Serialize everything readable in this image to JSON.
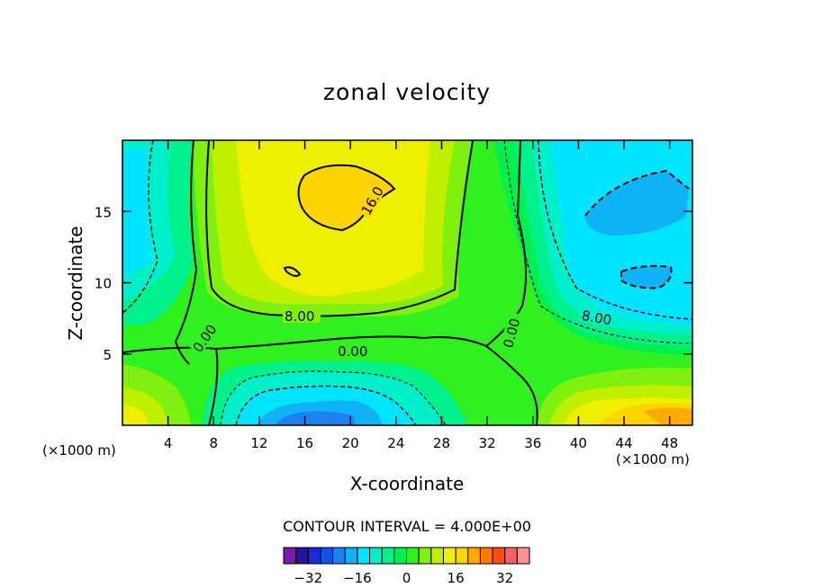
{
  "chart_data": {
    "type": "heatmap",
    "title": "zonal velocity",
    "xlabel": "X-coordinate",
    "ylabel": "Z-coordinate",
    "x_unit_left": "(×1000 m)",
    "x_unit_right": "(×1000 m)",
    "xlim": [
      0,
      50
    ],
    "ylim": [
      0,
      20
    ],
    "x_ticks": [
      4,
      8,
      12,
      16,
      20,
      24,
      28,
      32,
      36,
      40,
      44,
      48
    ],
    "y_ticks": [
      5,
      10,
      15
    ],
    "contour_interval_text": "CONTOUR INTERVAL = 4.000E+00",
    "contour_labels": [
      "16.0",
      "8.00",
      "8.00",
      "0.00",
      "0.00",
      "0.00"
    ],
    "colorbar": {
      "levels": [
        -40,
        -36,
        -32,
        -28,
        -24,
        -20,
        -16,
        -12,
        -8,
        -4,
        0,
        4,
        8,
        12,
        16,
        20,
        24,
        28,
        32,
        36,
        40
      ],
      "colors": [
        "#7a1bb0",
        "#2a12a0",
        "#1a2ad8",
        "#1050f0",
        "#1b82f2",
        "#10b2f6",
        "#00e5ff",
        "#00f0cc",
        "#00f08c",
        "#00f050",
        "#30f020",
        "#80f010",
        "#c0f000",
        "#eef000",
        "#ffd400",
        "#ffaa00",
        "#ff7a00",
        "#ff4a10",
        "#ff6060",
        "#ff9090"
      ],
      "tick_labels": [
        "-32",
        "-16",
        "0",
        "16",
        "32"
      ],
      "tick_values": [
        -32,
        -16,
        0,
        16,
        32
      ]
    }
  }
}
